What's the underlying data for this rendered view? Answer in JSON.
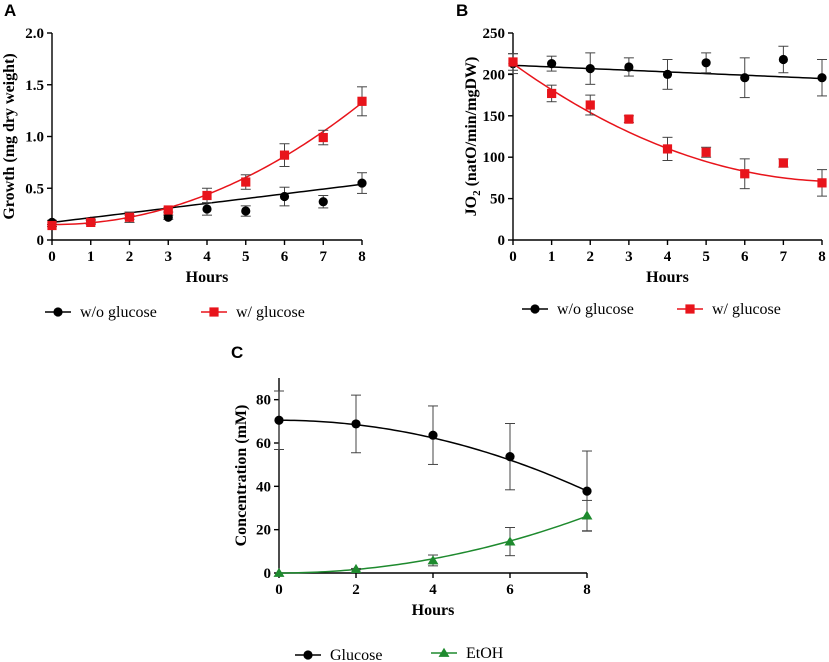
{
  "chart_data": [
    {
      "id": "A",
      "panel_label": "A",
      "type": "scatter",
      "xlabel": "Hours",
      "ylabel": "Growth (mg dry weight)",
      "xlim": [
        0,
        8
      ],
      "ylim": [
        0,
        2.0
      ],
      "xticks": [
        0,
        1,
        2,
        3,
        4,
        5,
        6,
        7,
        8
      ],
      "yticks": [
        0,
        0.5,
        1.0,
        1.5,
        2.0
      ],
      "ytick_labels": [
        "0",
        "0.5",
        "1.0",
        "1.5",
        "2.0"
      ],
      "series": [
        {
          "name": "w/o glucose",
          "color": "#000000",
          "marker": "circle",
          "x": [
            0,
            1,
            2,
            3,
            4,
            5,
            6,
            7,
            8
          ],
          "y": [
            0.17,
            0.18,
            0.22,
            0.22,
            0.3,
            0.28,
            0.42,
            0.37,
            0.55
          ],
          "err": [
            0.02,
            0.02,
            0.05,
            0.02,
            0.06,
            0.05,
            0.09,
            0.06,
            0.1
          ],
          "fit": [
            0.17,
            0.046,
            0.0
          ]
        },
        {
          "name": "w/ glucose",
          "color": "#e8141b",
          "marker": "square",
          "x": [
            0,
            1,
            2,
            3,
            4,
            5,
            6,
            7,
            8
          ],
          "y": [
            0.14,
            0.17,
            0.22,
            0.29,
            0.43,
            0.56,
            0.82,
            0.99,
            1.34
          ],
          "err": [
            0.01,
            0.02,
            0.02,
            0.02,
            0.07,
            0.07,
            0.11,
            0.07,
            0.14
          ],
          "fit": [
            0.15,
            -0.0026,
            0.0187
          ]
        }
      ]
    },
    {
      "id": "B",
      "panel_label": "B",
      "type": "scatter",
      "xlabel": "Hours",
      "ylabel": "JO2 (natO/min/mgDW)",
      "ylabel_main": "JO",
      "ylabel_sub": "2",
      "ylabel_rest": " (natO/min/mgDW)",
      "xlim": [
        0,
        8
      ],
      "ylim": [
        0,
        250
      ],
      "xticks": [
        0,
        1,
        2,
        3,
        4,
        5,
        6,
        7,
        8
      ],
      "yticks": [
        0,
        50,
        100,
        150,
        200,
        250
      ],
      "ytick_labels": [
        "0",
        "50",
        "100",
        "150",
        "200",
        "250"
      ],
      "series": [
        {
          "name": "w/o glucose",
          "color": "#000000",
          "marker": "circle",
          "x": [
            0,
            1,
            2,
            3,
            4,
            5,
            6,
            7,
            8
          ],
          "y": [
            213,
            213,
            207,
            209,
            200,
            214,
            196,
            218,
            196
          ],
          "err": [
            12,
            9,
            19,
            11,
            18,
            12,
            24,
            16,
            22
          ],
          "fit": [
            211,
            -2.0,
            0.0
          ]
        },
        {
          "name": "w/ glucose",
          "color": "#e8141b",
          "marker": "square",
          "x": [
            0,
            1,
            2,
            3,
            4,
            5,
            6,
            7,
            8
          ],
          "y": [
            215,
            177,
            163,
            146,
            110,
            106,
            80,
            93,
            69
          ],
          "err": [
            10,
            10,
            12,
            4,
            14,
            6,
            18,
            5,
            16
          ],
          "fit": [
            213,
            -33.5,
            1.97
          ]
        }
      ]
    },
    {
      "id": "C",
      "panel_label": "C",
      "type": "scatter",
      "xlabel": "Hours",
      "ylabel": "Concentration (mM)",
      "xlim": [
        0,
        8
      ],
      "ylim": [
        0,
        90
      ],
      "xticks": [
        0,
        2,
        4,
        6,
        8
      ],
      "yticks": [
        0,
        20,
        40,
        60,
        80
      ],
      "ytick_labels": [
        "0",
        "20",
        "40",
        "60",
        "80"
      ],
      "series": [
        {
          "name": "Glucose",
          "color": "#000000",
          "marker": "circle",
          "x": [
            0,
            2,
            4,
            6,
            8
          ],
          "y": [
            70.5,
            68.8,
            63.6,
            53.7,
            37.8
          ],
          "err": [
            13.5,
            13.3,
            13.5,
            15.3,
            18.5
          ],
          "fit": [
            70.5,
            0.0,
            -0.51
          ]
        },
        {
          "name": "EtOH",
          "color": "#1e8a2e",
          "marker": "triangle",
          "x": [
            0,
            2,
            4,
            6,
            8
          ],
          "y": [
            0.0,
            1.8,
            5.8,
            14.5,
            26.5
          ],
          "err": [
            0.0,
            0.3,
            2.5,
            6.5,
            7.0
          ],
          "fit": [
            0.0,
            0.0,
            0.41
          ]
        }
      ]
    }
  ]
}
